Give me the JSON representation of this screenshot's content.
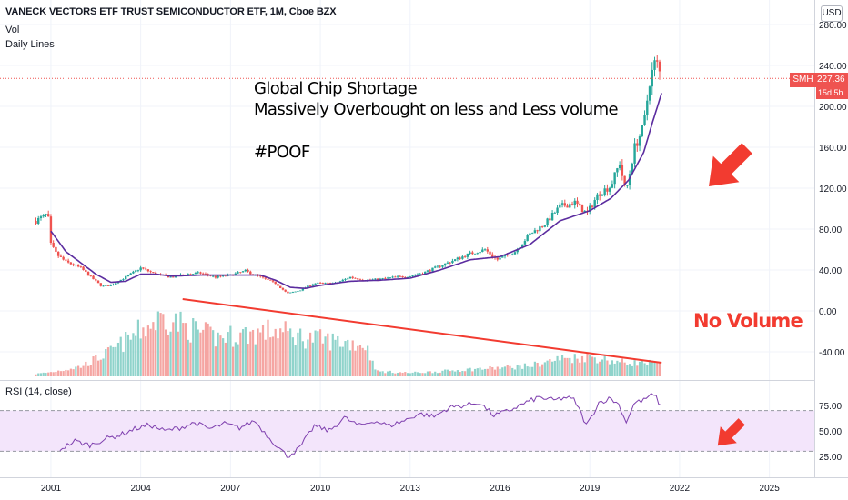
{
  "header": {
    "title": "VANECK VECTORS ETF TRUST SEMICONDUCTOR ETF, 1M, Cboe BZX",
    "vol_label": "Vol",
    "lines_label": "Daily Lines",
    "currency": "USD"
  },
  "annotations": {
    "line1": "Global Chip Shortage",
    "line2": "Massively Overbought on less and Less volume",
    "line3": "#POOF",
    "no_volume": "No Volume"
  },
  "price_label": {
    "symbol": "SMH",
    "value": "227.36",
    "countdown": "15d 5h"
  },
  "rsi_label": "RSI (14, close)",
  "colors": {
    "up": "#26a69a",
    "down": "#ef5350",
    "ma": "#5b2c9f",
    "rsi_line": "#7e3fae",
    "rsi_band": "#f3e5fb",
    "arrow": "#f23b30",
    "trendline": "#f23b30"
  },
  "chart_data": [
    {
      "type": "candlestick",
      "interval": "1M",
      "price_axis": {
        "ticks": [
          280,
          240,
          200,
          160,
          120,
          80,
          40,
          0,
          -40
        ],
        "tick_labels": [
          "280.00",
          "240.00",
          "200.00",
          "160.00",
          "120.00",
          "80.00",
          "40.00",
          "0.00",
          "-40.00"
        ]
      },
      "time_axis": {
        "ticks": [
          2001,
          2004,
          2007,
          2010,
          2013,
          2016,
          2019,
          2022,
          2025
        ],
        "range": [
          1999.3,
          2026.5
        ]
      },
      "price_path": [
        [
          2000.5,
          88
        ],
        [
          2000.9,
          95
        ],
        [
          2001.0,
          65
        ],
        [
          2001.2,
          55
        ],
        [
          2001.5,
          48
        ],
        [
          2002.0,
          42
        ],
        [
          2002.3,
          34
        ],
        [
          2002.7,
          24
        ],
        [
          2003.0,
          25
        ],
        [
          2003.5,
          33
        ],
        [
          2004.0,
          42
        ],
        [
          2004.5,
          36
        ],
        [
          2005.0,
          33
        ],
        [
          2005.5,
          36
        ],
        [
          2006.0,
          37
        ],
        [
          2006.5,
          33
        ],
        [
          2007.0,
          35
        ],
        [
          2007.5,
          39
        ],
        [
          2008.0,
          33
        ],
        [
          2008.5,
          27
        ],
        [
          2008.9,
          17
        ],
        [
          2009.3,
          20
        ],
        [
          2009.8,
          27
        ],
        [
          2010.5,
          27
        ],
        [
          2011.0,
          33
        ],
        [
          2011.5,
          30
        ],
        [
          2012.0,
          31
        ],
        [
          2012.5,
          33
        ],
        [
          2013.0,
          34
        ],
        [
          2013.5,
          38
        ],
        [
          2014.0,
          44
        ],
        [
          2014.5,
          50
        ],
        [
          2015.0,
          56
        ],
        [
          2015.5,
          60
        ],
        [
          2015.9,
          50
        ],
        [
          2016.5,
          58
        ],
        [
          2017.0,
          75
        ],
        [
          2017.5,
          85
        ],
        [
          2018.0,
          102
        ],
        [
          2018.5,
          106
        ],
        [
          2018.9,
          95
        ],
        [
          2019.3,
          115
        ],
        [
          2019.7,
          122
        ],
        [
          2020.0,
          145
        ],
        [
          2020.2,
          115
        ],
        [
          2020.5,
          160
        ],
        [
          2020.8,
          180
        ],
        [
          2021.0,
          225
        ],
        [
          2021.2,
          245
        ],
        [
          2021.4,
          227
        ]
      ],
      "last_close": 227.36,
      "ma_path": [
        [
          2001.0,
          78
        ],
        [
          2001.5,
          58
        ],
        [
          2002.0,
          47
        ],
        [
          2002.5,
          36
        ],
        [
          2003.0,
          28
        ],
        [
          2003.5,
          29
        ],
        [
          2004.0,
          36
        ],
        [
          2004.5,
          36
        ],
        [
          2005.0,
          34
        ],
        [
          2006.0,
          35
        ],
        [
          2007.0,
          35
        ],
        [
          2008.0,
          35
        ],
        [
          2008.5,
          30
        ],
        [
          2009.0,
          23
        ],
        [
          2009.5,
          22
        ],
        [
          2010.0,
          25
        ],
        [
          2011.0,
          29
        ],
        [
          2012.0,
          30
        ],
        [
          2013.0,
          32
        ],
        [
          2014.0,
          40
        ],
        [
          2015.0,
          50
        ],
        [
          2016.0,
          53
        ],
        [
          2017.0,
          65
        ],
        [
          2018.0,
          88
        ],
        [
          2019.0,
          98
        ],
        [
          2019.7,
          110
        ],
        [
          2020.3,
          128
        ],
        [
          2020.8,
          155
        ],
        [
          2021.1,
          185
        ],
        [
          2021.4,
          213
        ]
      ]
    },
    {
      "type": "bar",
      "name": "Vol",
      "volume_path": [
        [
          2000.4,
          0.03
        ],
        [
          2001.0,
          0.06
        ],
        [
          2002.0,
          0.14
        ],
        [
          2003.0,
          0.35
        ],
        [
          2004.0,
          0.65
        ],
        [
          2004.8,
          0.85
        ],
        [
          2005.5,
          0.7
        ],
        [
          2006.5,
          0.55
        ],
        [
          2007.5,
          0.6
        ],
        [
          2008.5,
          0.65
        ],
        [
          2009.5,
          0.55
        ],
        [
          2010.5,
          0.5
        ],
        [
          2011.5,
          0.45
        ],
        [
          2011.9,
          0.07
        ],
        [
          2013.0,
          0.05
        ],
        [
          2014.0,
          0.07
        ],
        [
          2015.0,
          0.1
        ],
        [
          2016.0,
          0.12
        ],
        [
          2017.0,
          0.15
        ],
        [
          2018.0,
          0.25
        ],
        [
          2019.0,
          0.28
        ],
        [
          2020.0,
          0.2
        ],
        [
          2021.4,
          0.18
        ]
      ],
      "trendline": [
        [
          2005.4,
          0.85
        ],
        [
          2021.4,
          0.15
        ]
      ]
    },
    {
      "type": "line",
      "name": "RSI (14, close)",
      "axis": {
        "ticks": [
          75,
          50,
          25
        ],
        "tick_labels": [
          "75.00",
          "50.00",
          "25.00"
        ]
      },
      "bands": [
        30,
        70
      ],
      "rsi_path": [
        [
          2001.3,
          32
        ],
        [
          2001.8,
          40
        ],
        [
          2002.3,
          36
        ],
        [
          2002.8,
          42
        ],
        [
          2003.3,
          46
        ],
        [
          2003.8,
          52
        ],
        [
          2004.3,
          56
        ],
        [
          2004.8,
          50
        ],
        [
          2005.3,
          53
        ],
        [
          2005.8,
          58
        ],
        [
          2006.3,
          52
        ],
        [
          2006.8,
          57
        ],
        [
          2007.3,
          53
        ],
        [
          2007.8,
          60
        ],
        [
          2008.3,
          43
        ],
        [
          2008.9,
          25
        ],
        [
          2009.3,
          33
        ],
        [
          2009.8,
          55
        ],
        [
          2010.3,
          50
        ],
        [
          2010.8,
          63
        ],
        [
          2011.3,
          55
        ],
        [
          2011.8,
          60
        ],
        [
          2012.3,
          55
        ],
        [
          2012.8,
          60
        ],
        [
          2013.3,
          67
        ],
        [
          2013.8,
          64
        ],
        [
          2014.3,
          73
        ],
        [
          2014.8,
          75
        ],
        [
          2015.3,
          78
        ],
        [
          2015.8,
          65
        ],
        [
          2016.3,
          70
        ],
        [
          2016.8,
          77
        ],
        [
          2017.3,
          83
        ],
        [
          2017.8,
          80
        ],
        [
          2018.2,
          83
        ],
        [
          2018.5,
          80
        ],
        [
          2018.9,
          55
        ],
        [
          2019.3,
          78
        ],
        [
          2019.7,
          82
        ],
        [
          2020.0,
          75
        ],
        [
          2020.2,
          58
        ],
        [
          2020.5,
          78
        ],
        [
          2020.8,
          80
        ],
        [
          2021.0,
          85
        ],
        [
          2021.2,
          84
        ],
        [
          2021.4,
          72
        ]
      ]
    }
  ]
}
